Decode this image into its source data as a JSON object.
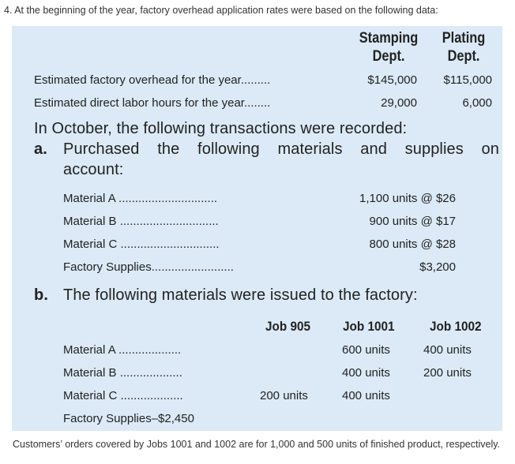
{
  "intro": "4. At the beginning of the year, factory overhead application rates were based on the following data:",
  "header": {
    "stamping": [
      "Stamping",
      "Dept."
    ],
    "plating": [
      "Plating",
      "Dept."
    ]
  },
  "estimates": [
    {
      "label": "Estimated factory overhead for the year.........",
      "stamping": "$145,000",
      "plating": "$115,000"
    },
    {
      "label": "Estimated direct labor hours for the year........",
      "stamping": "29,000",
      "plating": "6,000"
    }
  ],
  "october_intro": "In October, the following transactions were recorded:",
  "part_a": {
    "letter": "a.",
    "line1": "Purchased the following materials and supplies on",
    "line2": "account:",
    "items": [
      {
        "label": "Material A ..............................",
        "value": "1,100 units @ $26"
      },
      {
        "label": "Material B ..............................",
        "value": "900 units @ $17"
      },
      {
        "label": "Material C ..............................",
        "value": "800 units @ $28"
      },
      {
        "label": "Factory Supplies.........................",
        "value": "$3,200"
      }
    ]
  },
  "part_b": {
    "letter": "b.",
    "text": "The following materials were issued to the factory:",
    "jobs": [
      "Job 905",
      "Job 1001",
      "Job 1002"
    ],
    "items": [
      {
        "label": "Material A ...................",
        "j905": "",
        "j1001": "600 units",
        "j1002": "400 units"
      },
      {
        "label": "Material B ...................",
        "j905": "",
        "j1001": "400 units",
        "j1002": "200 units"
      },
      {
        "label": "Material C ...................",
        "j905": "200 units",
        "j1001": "400 units",
        "j1002": ""
      }
    ],
    "supplies": "Factory Supplies–$2,450"
  },
  "footer": "Customers’ orders covered by Jobs 1001 and 1002 are for 1,000 and 500 units of finished product, respectively."
}
